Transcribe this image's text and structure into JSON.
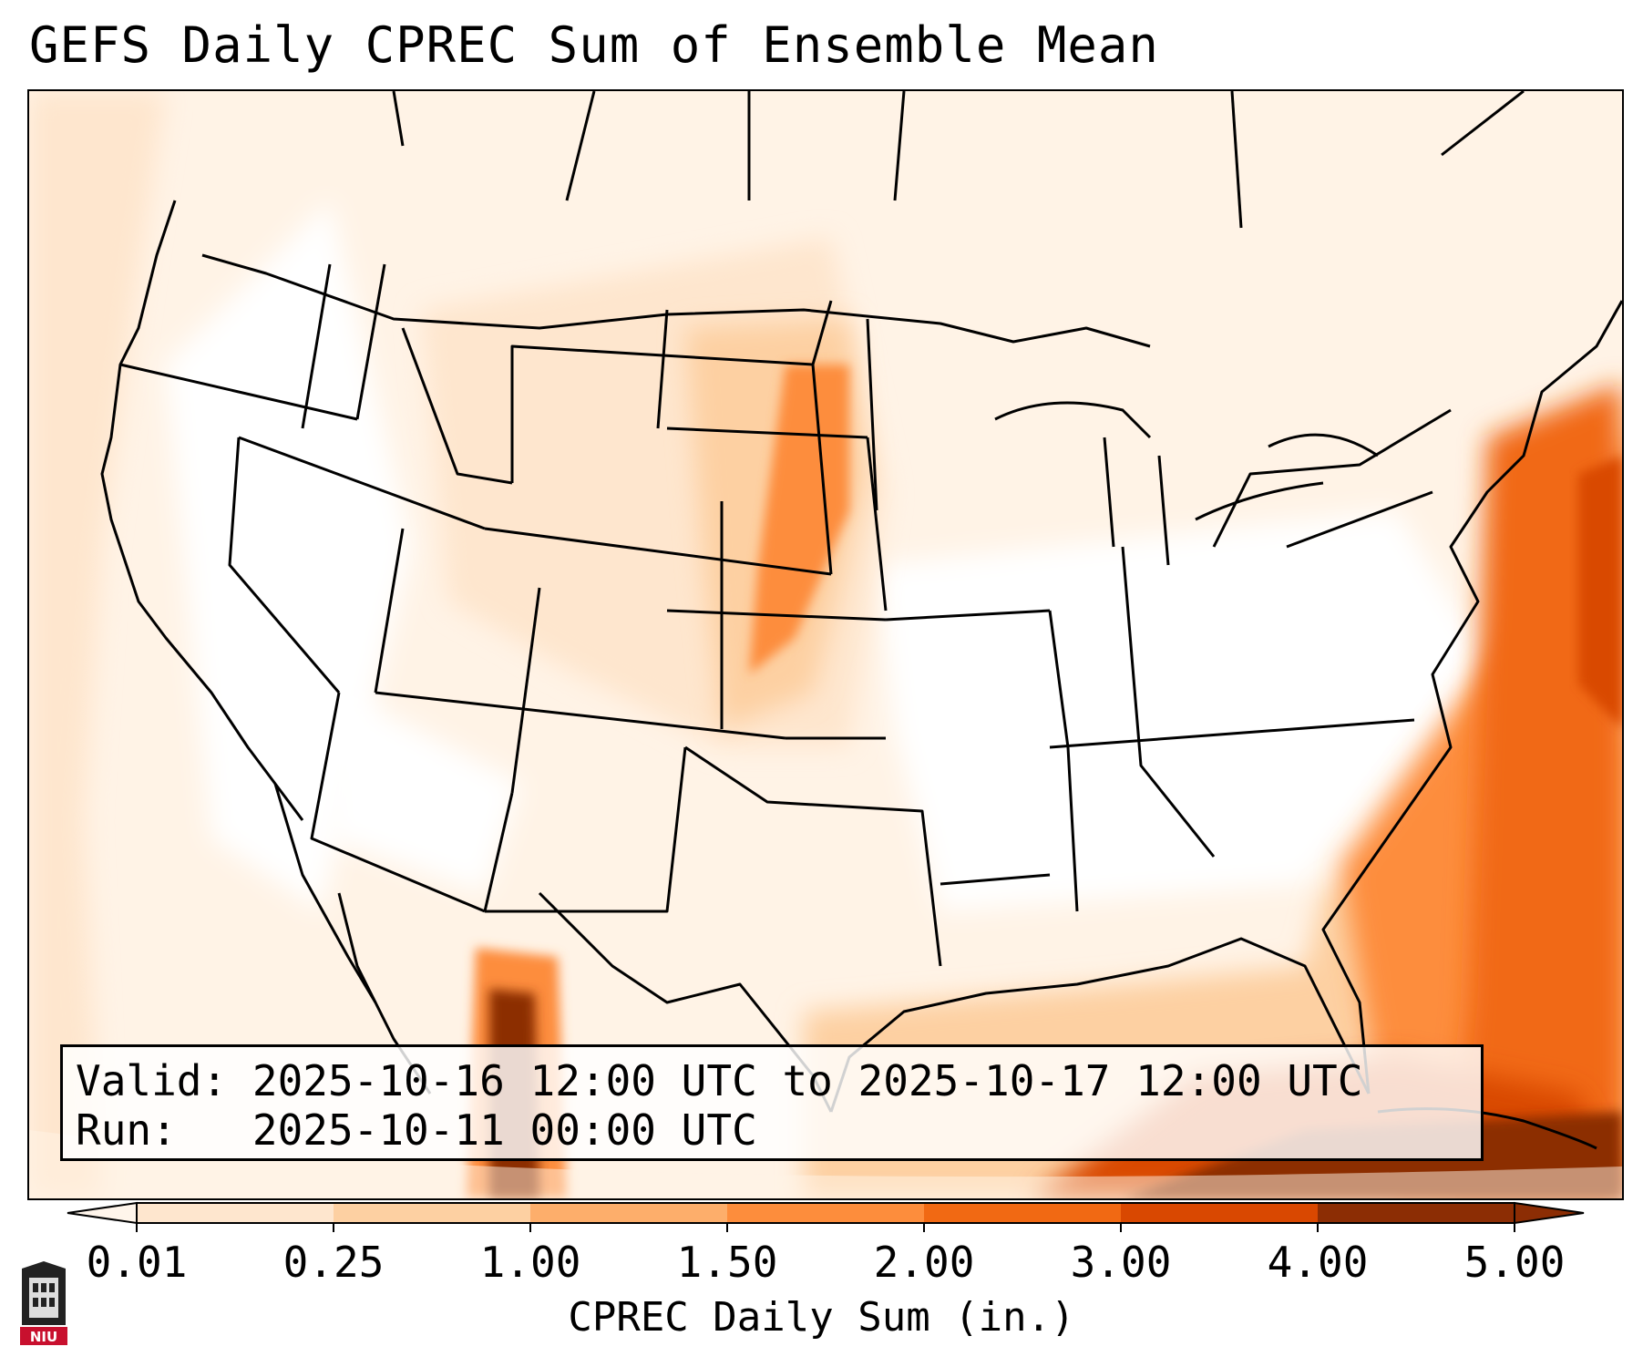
{
  "title": "GEFS Daily CPREC Sum of Ensemble Mean",
  "info": {
    "valid_label": "Valid:",
    "valid_value": "2025-10-16 12:00 UTC to 2025-10-17 12:00 UTC",
    "run_label": "Run:",
    "run_value": "2025-10-11 00:00 UTC"
  },
  "colorbar": {
    "label": "CPREC Daily Sum (in.)",
    "ticks": [
      "0.01",
      "0.25",
      "1.00",
      "1.50",
      "2.00",
      "3.00",
      "4.00",
      "5.00"
    ],
    "colors": [
      "#fff5eb",
      "#fee6ce",
      "#fdd0a2",
      "#fdae6b",
      "#fd8d3c",
      "#f16913",
      "#d94801",
      "#8c2d04"
    ]
  },
  "logo": {
    "text": "NIU",
    "color": "#c8102e"
  }
}
